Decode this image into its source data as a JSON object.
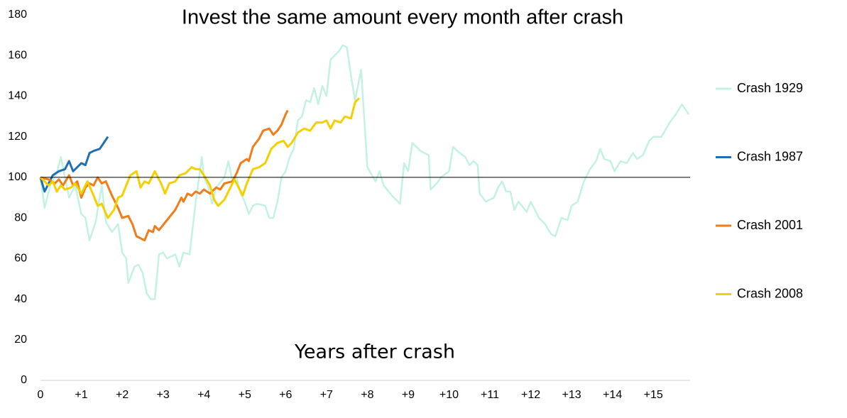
{
  "chart_data": {
    "type": "line",
    "title": "Invest the same amount every month after crash",
    "x_label": "Years after crash",
    "xlim": [
      0,
      15.9
    ],
    "ylim": [
      0,
      180
    ],
    "xticks": [
      0,
      {
        "value": 1,
        "label": "+1"
      },
      {
        "value": 2,
        "label": "+2"
      },
      {
        "value": 3,
        "label": "+3"
      },
      {
        "value": 4,
        "label": "+4"
      },
      {
        "value": 5,
        "label": "+5"
      },
      {
        "value": 6,
        "label": "+6"
      },
      {
        "value": 7,
        "label": "+7"
      },
      {
        "value": 8,
        "label": "+8"
      },
      {
        "value": 9,
        "label": "+9"
      },
      {
        "value": 10,
        "label": "+10"
      },
      {
        "value": 11,
        "label": "+11"
      },
      {
        "value": 12,
        "label": "+12"
      },
      {
        "value": 13,
        "label": "+13"
      },
      {
        "value": 14,
        "label": "+14"
      },
      {
        "value": 15,
        "label": "+15"
      }
    ],
    "yticks": [
      0,
      20,
      40,
      60,
      80,
      100,
      120,
      140,
      160,
      180
    ],
    "reference_line": 100,
    "legend": "right",
    "series": [
      {
        "name": "Crash 1929",
        "color": "#c4f2e2",
        "x": [
          0,
          0.1,
          0.25,
          0.4,
          0.5,
          0.6,
          0.7,
          0.85,
          1.0,
          1.1,
          1.2,
          1.35,
          1.5,
          1.6,
          1.75,
          1.9,
          2.0,
          2.1,
          2.15,
          2.3,
          2.4,
          2.5,
          2.6,
          2.7,
          2.8,
          2.9,
          3.0,
          3.1,
          3.3,
          3.4,
          3.5,
          3.65,
          3.8,
          3.95,
          4.0,
          4.1,
          4.2,
          4.3,
          4.5,
          4.6,
          4.7,
          4.8,
          4.9,
          5.0,
          5.1,
          5.2,
          5.3,
          5.5,
          5.6,
          5.7,
          5.8,
          5.9,
          6.0,
          6.1,
          6.2,
          6.3,
          6.4,
          6.5,
          6.6,
          6.7,
          6.8,
          6.9,
          7.0,
          7.1,
          7.2,
          7.3,
          7.4,
          7.5,
          7.6,
          7.7,
          7.85,
          8.0,
          8.2,
          8.3,
          8.4,
          8.6,
          8.8,
          8.9,
          9.0,
          9.1,
          9.3,
          9.5,
          9.55,
          9.7,
          9.8,
          10.0,
          10.1,
          10.2,
          10.4,
          10.5,
          10.6,
          10.7,
          10.75,
          10.9,
          11.0,
          11.1,
          11.2,
          11.3,
          11.4,
          11.5,
          11.6,
          11.7,
          11.9,
          12.0,
          12.2,
          12.35,
          12.5,
          12.6,
          12.75,
          12.9,
          13.0,
          13.15,
          13.3,
          13.45,
          13.6,
          13.7,
          13.8,
          13.95,
          14.05,
          14.2,
          14.35,
          14.5,
          14.6,
          14.75,
          14.9,
          15.0,
          15.2,
          15.4,
          15.55,
          15.7,
          15.87
        ],
        "values": [
          100,
          85,
          97,
          102,
          110,
          100,
          90,
          96,
          82,
          80,
          69,
          78,
          96,
          78,
          73,
          77,
          63,
          60,
          48,
          56,
          57,
          53,
          43,
          40,
          40,
          62,
          63,
          60,
          62,
          56,
          63,
          62,
          88,
          110,
          100,
          96,
          87,
          95,
          100,
          108,
          98,
          100,
          92,
          88,
          82,
          86,
          87,
          86,
          80,
          80,
          88,
          100,
          103,
          110,
          114,
          128,
          130,
          138,
          137,
          144,
          136,
          145,
          140,
          158,
          160,
          162,
          165,
          164,
          150,
          138,
          153,
          105,
          98,
          103,
          96,
          91,
          87,
          107,
          103,
          117,
          113,
          111,
          94,
          97,
          100,
          103,
          115,
          113,
          110,
          106,
          108,
          106,
          92,
          88,
          89,
          90,
          95,
          98,
          93,
          93,
          84,
          88,
          83,
          88,
          80,
          77,
          72,
          71,
          80,
          79,
          86,
          88,
          98,
          104,
          108,
          114,
          109,
          108,
          103,
          108,
          107,
          112,
          109,
          111,
          118,
          120,
          120,
          127,
          131,
          136,
          131
        ]
      },
      {
        "name": "Crash 1987",
        "color": "#1f6fb4",
        "x": [
          0,
          0.1,
          0.2,
          0.3,
          0.45,
          0.6,
          0.7,
          0.8,
          0.9,
          1.0,
          1.1,
          1.2,
          1.3,
          1.45,
          1.55,
          1.65
        ],
        "values": [
          100,
          93,
          97,
          101,
          103,
          104,
          108,
          103,
          105,
          107,
          106,
          112,
          113,
          114,
          117,
          120
        ]
      },
      {
        "name": "Crash 2001",
        "color": "#f07d1a",
        "x": [
          0,
          0.2,
          0.35,
          0.45,
          0.55,
          0.7,
          0.8,
          0.9,
          1.0,
          1.1,
          1.2,
          1.3,
          1.4,
          1.5,
          1.6,
          1.75,
          1.9,
          2.0,
          2.15,
          2.25,
          2.35,
          2.55,
          2.65,
          2.75,
          2.8,
          2.9,
          3.1,
          3.3,
          3.45,
          3.5,
          3.6,
          3.7,
          3.8,
          3.9,
          4.0,
          4.15,
          4.3,
          4.4,
          4.5,
          4.7,
          4.8,
          4.9,
          5.05,
          5.1,
          5.2,
          5.35,
          5.45,
          5.6,
          5.7,
          5.8,
          5.9,
          6.0,
          6.05
        ],
        "values": [
          100,
          99,
          97,
          99,
          96,
          101,
          96,
          98,
          90,
          95,
          97,
          96,
          100,
          97,
          98,
          91,
          85,
          80,
          81,
          77,
          71,
          69,
          74,
          73,
          76,
          74,
          79,
          84,
          90,
          88,
          92,
          91,
          93,
          92,
          94,
          92,
          95,
          94,
          97,
          98,
          102,
          107,
          109,
          108,
          115,
          119,
          123,
          124,
          121,
          123,
          126,
          131,
          133
        ]
      },
      {
        "name": "Crash 2008",
        "color": "#f5d000",
        "x": [
          0,
          0.2,
          0.3,
          0.4,
          0.5,
          0.6,
          0.75,
          0.85,
          1.0,
          1.15,
          1.3,
          1.4,
          1.5,
          1.65,
          1.8,
          1.9,
          2.0,
          2.1,
          2.2,
          2.35,
          2.45,
          2.55,
          2.65,
          2.8,
          2.95,
          3.05,
          3.15,
          3.3,
          3.4,
          3.55,
          3.7,
          3.8,
          3.9,
          4.0,
          4.15,
          4.25,
          4.35,
          4.5,
          4.6,
          4.75,
          4.85,
          4.95,
          5.05,
          5.2,
          5.35,
          5.5,
          5.65,
          5.8,
          5.95,
          6.05,
          6.15,
          6.3,
          6.45,
          6.6,
          6.75,
          6.9,
          7.0,
          7.1,
          7.2,
          7.35,
          7.45,
          7.6,
          7.7,
          7.8
        ],
        "values": [
          100,
          96,
          98,
          93,
          96,
          94,
          95,
          97,
          92,
          98,
          91,
          86,
          87,
          80,
          84,
          90,
          91,
          96,
          101,
          103,
          95,
          98,
          97,
          103,
          97,
          92,
          97,
          98,
          101,
          102,
          105,
          104,
          104,
          101,
          96,
          89,
          86,
          89,
          93,
          99,
          95,
          91,
          97,
          104,
          105,
          107,
          114,
          117,
          118,
          115,
          117,
          122,
          124,
          123,
          127,
          127,
          128,
          124,
          128,
          127,
          130,
          129,
          137,
          139
        ]
      }
    ]
  }
}
